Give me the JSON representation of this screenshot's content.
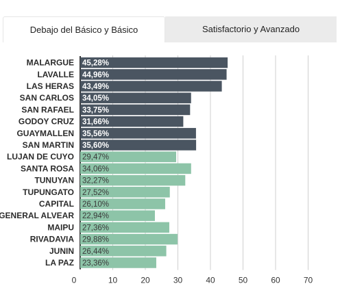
{
  "tabs": [
    {
      "label": "Debajo del Básico y Básico",
      "active": true
    },
    {
      "label": "Satisfactorio y Avanzado",
      "active": false
    }
  ],
  "colors": {
    "dark_bar": "#4a5561",
    "light_bar": "#8dc4a8",
    "grid": "#cfcfcf"
  },
  "chart_data": {
    "type": "bar",
    "orientation": "horizontal",
    "categories": [
      "MALARGUE",
      "LAVALLE",
      "LAS HERAS",
      "SAN CARLOS",
      "SAN RAFAEL",
      "GODOY CRUZ",
      "GUAYMALLEN",
      "SAN MARTIN",
      "LUJAN DE CUYO",
      "SANTA ROSA",
      "TUNUYAN",
      "TUPUNGATO",
      "CAPITAL",
      "GENERAL ALVEAR",
      "MAIPU",
      "RIVADAVIA",
      "JUNIN",
      "LA PAZ"
    ],
    "values": [
      45.28,
      44.96,
      43.49,
      34.05,
      33.75,
      31.66,
      35.56,
      35.6,
      29.47,
      34.06,
      32.27,
      27.52,
      26.1,
      22.94,
      27.36,
      29.88,
      26.44,
      23.36
    ],
    "value_labels": [
      "45,28%",
      "44,96%",
      "43,49%",
      "34,05%",
      "33,75%",
      "31,66%",
      "35,56%",
      "35,60%",
      "29,47%",
      "34,06%",
      "32,27%",
      "27,52%",
      "26,10%",
      "22,94%",
      "27,36%",
      "29,88%",
      "26,44%",
      "23,36%"
    ],
    "bar_group": [
      "dark",
      "dark",
      "dark",
      "dark",
      "dark",
      "dark",
      "dark",
      "dark",
      "light",
      "light",
      "light",
      "light",
      "light",
      "light",
      "light",
      "light",
      "light",
      "light"
    ],
    "xlim": [
      0,
      70
    ],
    "xticks": [
      0,
      10,
      20,
      30,
      40,
      50,
      60,
      70
    ],
    "grid": true
  }
}
